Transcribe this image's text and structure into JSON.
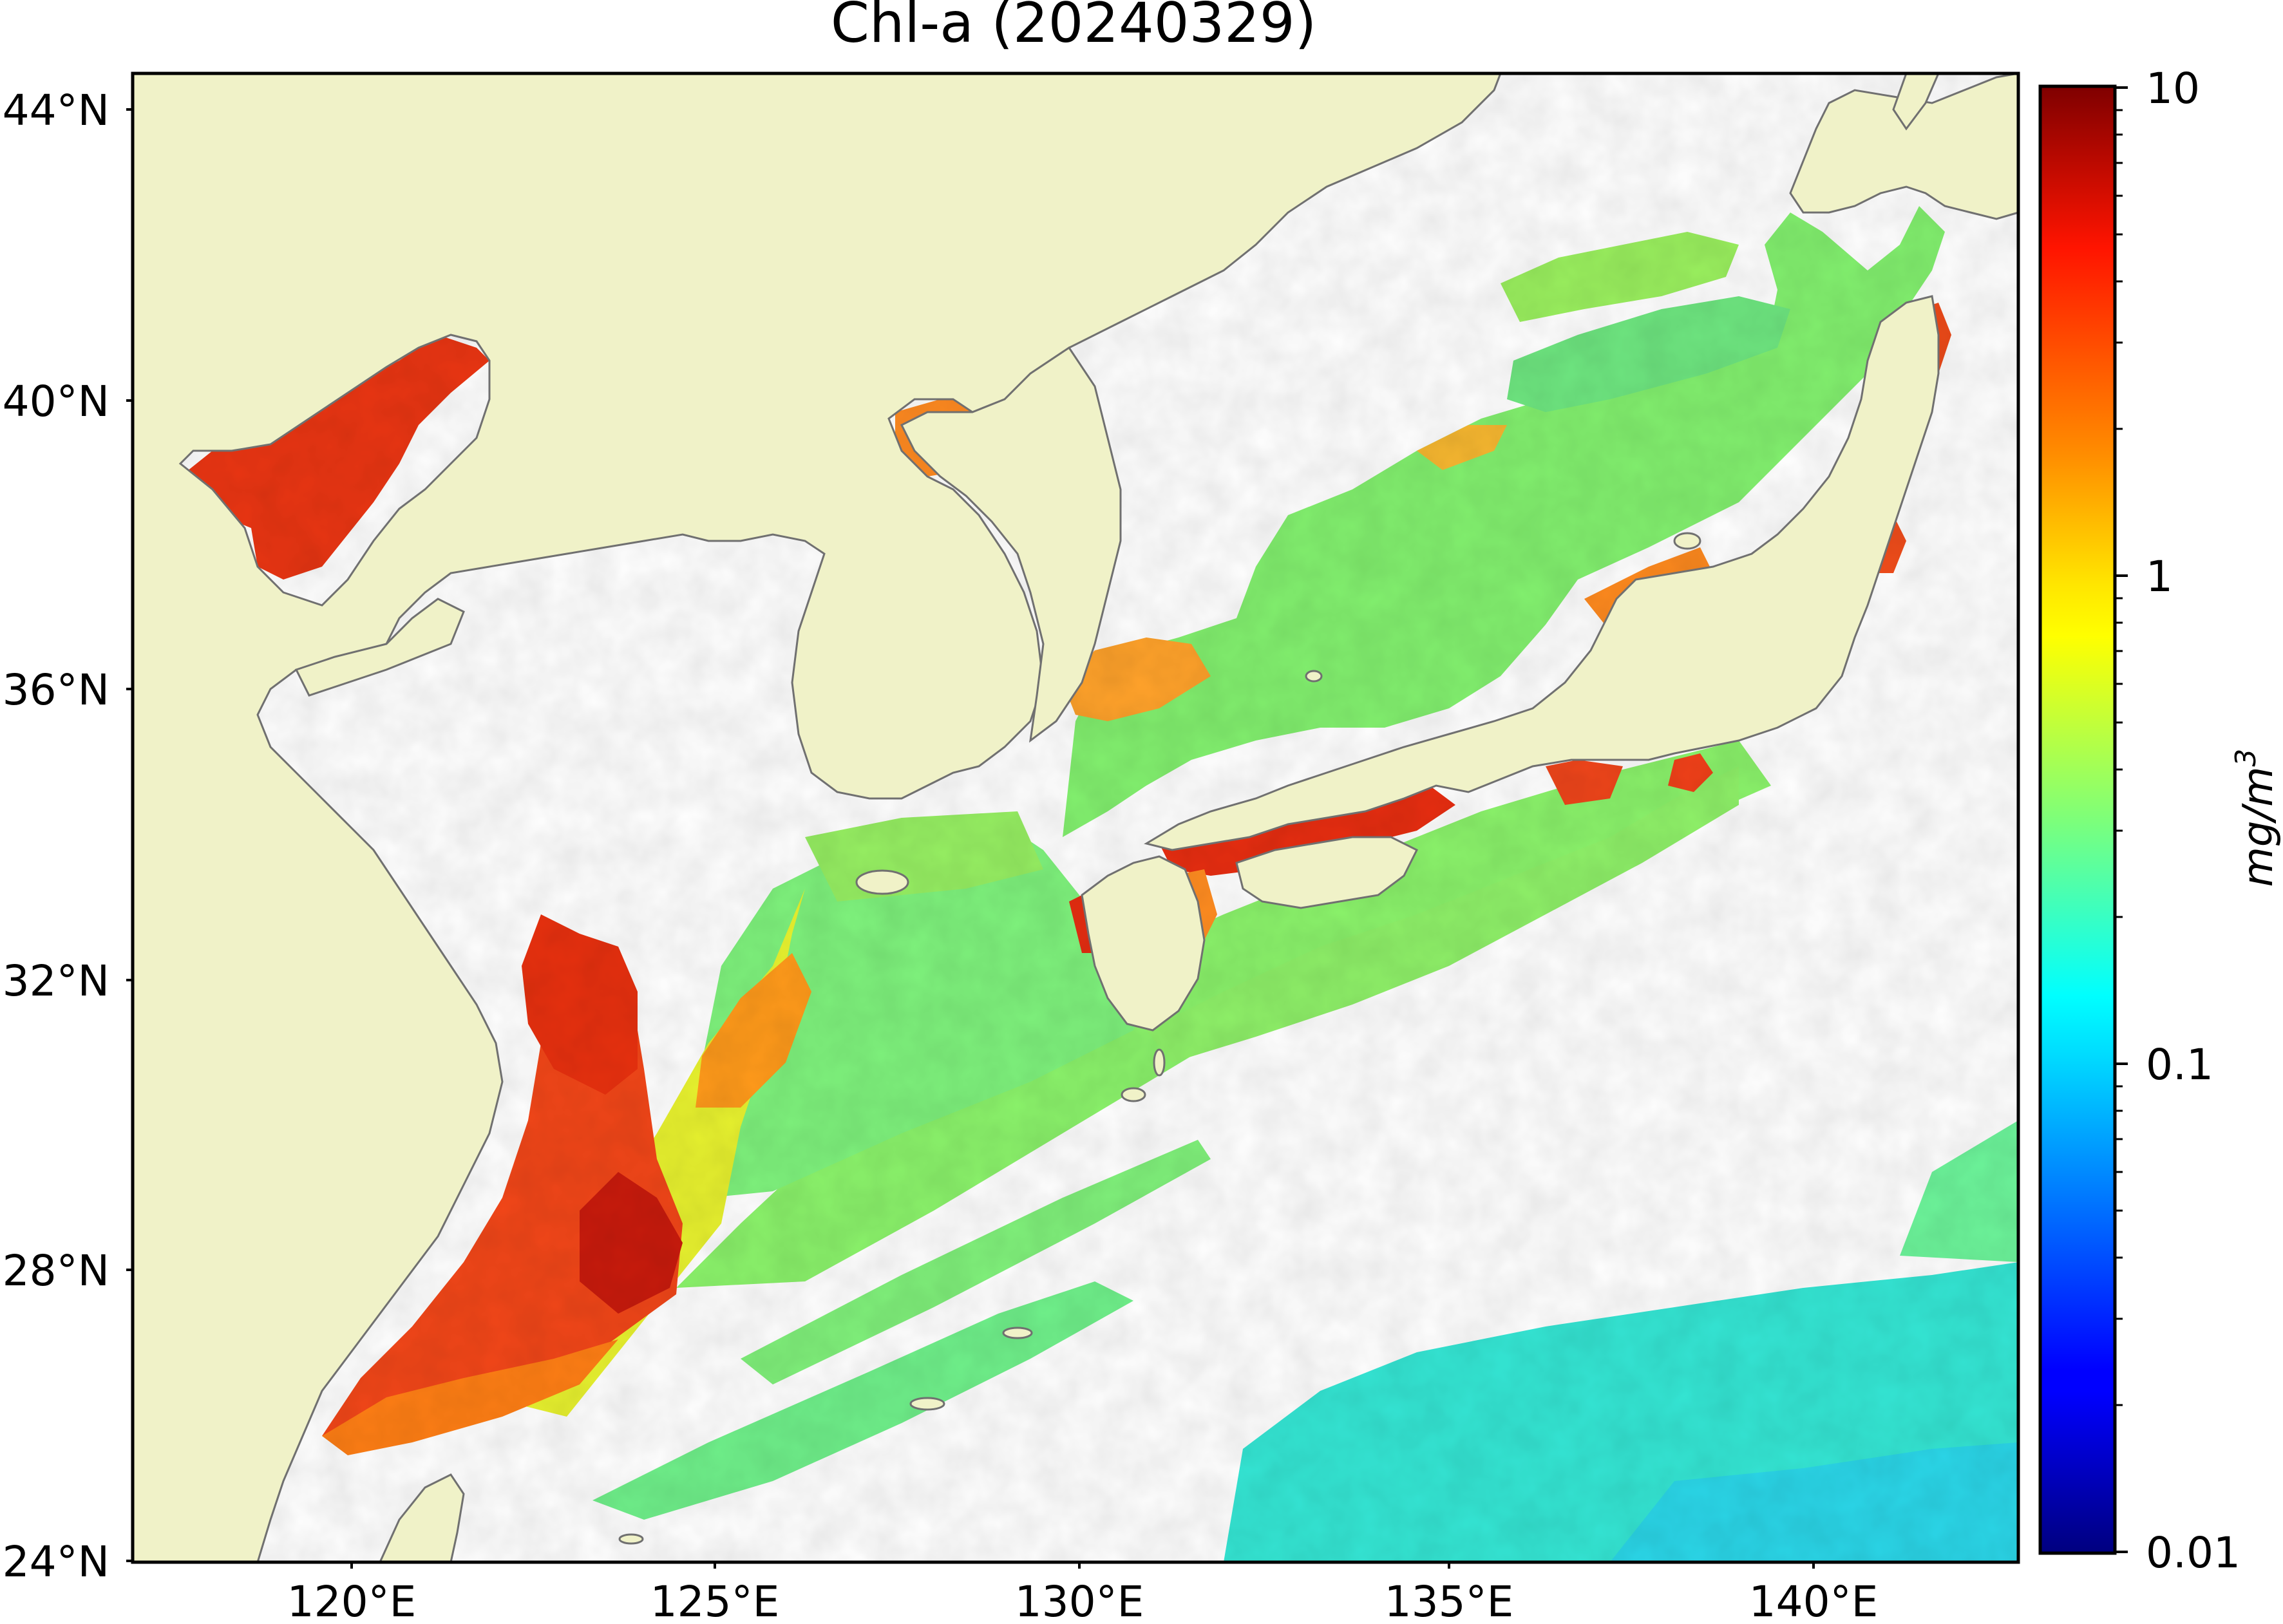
{
  "figure": {
    "title": "Chl-a (20240329)",
    "lat_labels": [
      "44°N",
      "40°N",
      "36°N",
      "32°N",
      "28°N",
      "24°N"
    ],
    "lon_labels": [
      "120°E",
      "125°E",
      "130°E",
      "135°E",
      "140°E"
    ],
    "extent": {
      "lon": [
        116.7,
        143.0
      ],
      "lat": [
        23.5,
        44.5
      ]
    },
    "colors": {
      "land": "#f0f2c8",
      "coast": "#707070",
      "missing": "#ffffff"
    }
  },
  "colorbar": {
    "label_main": "mg/m",
    "label_sup": "3",
    "scale": "log",
    "range": [
      0.01,
      10
    ],
    "tick_labels": [
      "10",
      "1",
      "0.1",
      "0.01"
    ],
    "colormap": "jet"
  }
}
